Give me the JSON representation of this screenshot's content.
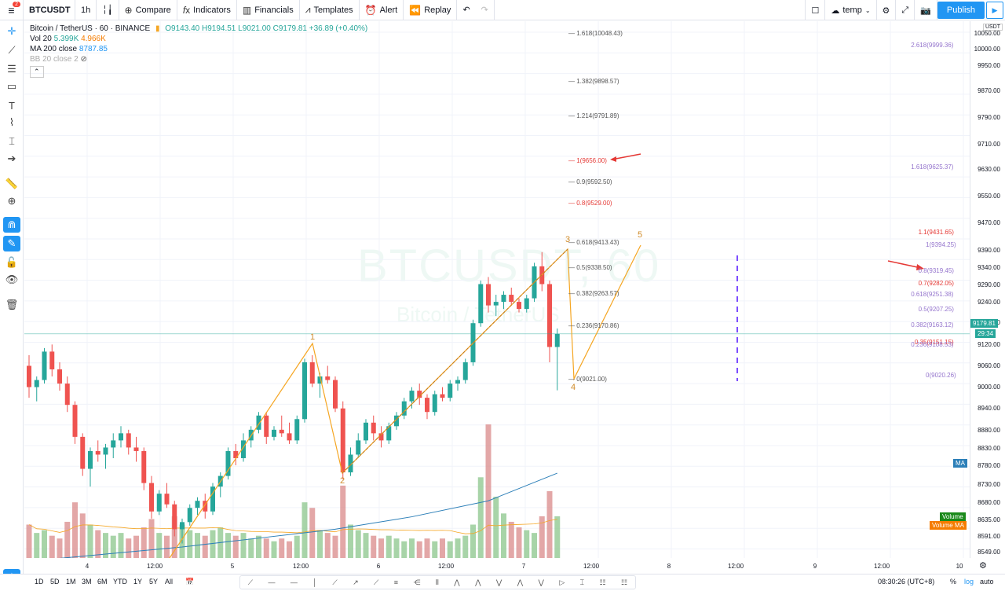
{
  "topbar": {
    "symbol": "BTCUSDT",
    "interval": "1h",
    "compare": "Compare",
    "indicators": "Indicators",
    "financials": "Financials",
    "templates": "Templates",
    "alert": "Alert",
    "replay": "Replay",
    "layout_name": "temp",
    "publish": "Publish",
    "menu_badge": "2"
  },
  "legend": {
    "title": "Bitcoin / TetherUS · 60 · BINANCE",
    "ohlc": "O9143.40 H9194.51 L9021.00 C9179.81 +36.89 (+0.40%)",
    "vol_label": "Vol 20",
    "vol_v1": "5.399K",
    "vol_v2": "4.966K",
    "ma_label": "MA 200 close",
    "ma_value": "8787.85",
    "bb_label": "BB 20 close 2"
  },
  "watermark": {
    "symbol": "BTCUSDT, 60",
    "name": "Bitcoin / TetherUS"
  },
  "price_axis": {
    "currency": "USDT",
    "labels": [
      "10050.00",
      "10000.00",
      "9950.00",
      "9870.00",
      "9790.00",
      "9710.00",
      "9630.00",
      "9550.00",
      "9470.00",
      "9390.00",
      "9340.00",
      "9290.00",
      "9240.00",
      "9180.00",
      "9120.00",
      "9060.00",
      "9000.00",
      "8940.00",
      "8880.00",
      "8830.00",
      "8780.00",
      "8730.00",
      "8680.00",
      "8635.00",
      "8591.00",
      "8549.00"
    ],
    "last_price": "9179.81",
    "countdown": "29:34",
    "ma_tag": "MA",
    "volume_tag": "Volume",
    "volume_ma_tag": "Volume MA"
  },
  "time_axis": [
    "4",
    "12:00",
    "5",
    "12:00",
    "6",
    "12:00",
    "7",
    "12:00",
    "8",
    "12:00",
    "9",
    "12:00",
    "10"
  ],
  "fib_ext": [
    {
      "label": "1.618(10048.43)",
      "color": "#555555"
    },
    {
      "label": "1.382(9898.57)",
      "color": "#555555"
    },
    {
      "label": "1.214(9791.89)",
      "color": "#555555"
    },
    {
      "label": "1(9656.00)",
      "color": "#e53935"
    },
    {
      "label": "0.9(9592.50)",
      "color": "#555555"
    },
    {
      "label": "0.8(9529.00)",
      "color": "#e53935"
    },
    {
      "label": "0.618(9413.43)",
      "color": "#555555"
    },
    {
      "label": "0.5(9338.50)",
      "color": "#555555"
    },
    {
      "label": "0.382(9263.57)",
      "color": "#555555"
    },
    {
      "label": "0.236(9170.86)",
      "color": "#555555"
    },
    {
      "label": "0(9021.00)",
      "color": "#555555"
    }
  ],
  "fib_right": [
    {
      "label": "2.618(9999.36)",
      "color": "#9575cd"
    },
    {
      "label": "1.618(9625.37)",
      "color": "#9575cd"
    },
    {
      "label": "1.1(9431.65)",
      "color": "#e53935"
    },
    {
      "label": "1(9394.25)",
      "color": "#9575cd"
    },
    {
      "label": "0.8(9319.45)",
      "color": "#9575cd"
    },
    {
      "label": "0.7(9282.05)",
      "color": "#e53935"
    },
    {
      "label": "0.618(9251.38)",
      "color": "#9575cd"
    },
    {
      "label": "0.5(9207.25)",
      "color": "#9575cd"
    },
    {
      "label": "0.382(9163.12)",
      "color": "#9575cd"
    },
    {
      "label": "0.35(9151.15)",
      "color": "#e53935"
    },
    {
      "label": "0.236(9108.53)",
      "color": "#9575cd"
    },
    {
      "label": "0(9020.26)",
      "color": "#9575cd"
    }
  ],
  "waves": [
    "1",
    "2",
    "3",
    "4",
    "5"
  ],
  "bottombar": {
    "ranges": [
      "1D",
      "5D",
      "1M",
      "3M",
      "6M",
      "YTD",
      "1Y",
      "5Y",
      "All"
    ],
    "time": "08:30:26 (UTC+8)",
    "percent": "%",
    "log": "log",
    "auto": "auto"
  },
  "colors": {
    "up": "#26a69a",
    "down": "#ef5350",
    "vol_up": "#8bc58b",
    "vol_down": "#d98a8a",
    "accent": "#2196f3",
    "wave": "#f5a623"
  },
  "chart_data": {
    "type": "candlestick",
    "candles": [
      [
        9090,
        9120,
        9000,
        9030
      ],
      [
        9030,
        9060,
        8990,
        9050
      ],
      [
        9050,
        9140,
        9040,
        9130
      ],
      [
        9130,
        9150,
        9060,
        9080
      ],
      [
        9080,
        9100,
        9020,
        9040
      ],
      [
        9040,
        9060,
        8960,
        8980
      ],
      [
        8980,
        8990,
        8870,
        8890
      ],
      [
        8890,
        8900,
        8780,
        8800
      ],
      [
        8800,
        8860,
        8750,
        8850
      ],
      [
        8850,
        8880,
        8820,
        8840
      ],
      [
        8840,
        8870,
        8800,
        8860
      ],
      [
        8860,
        8900,
        8830,
        8880
      ],
      [
        8880,
        8920,
        8860,
        8900
      ],
      [
        8900,
        8910,
        8840,
        8860
      ],
      [
        8860,
        8890,
        8820,
        8850
      ],
      [
        8850,
        8860,
        8740,
        8760
      ],
      [
        8760,
        8780,
        8660,
        8680
      ],
      [
        8680,
        8740,
        8670,
        8730
      ],
      [
        8730,
        8760,
        8690,
        8700
      ],
      [
        8700,
        8710,
        8610,
        8630
      ],
      [
        8630,
        8660,
        8590,
        8650
      ],
      [
        8650,
        8700,
        8640,
        8690
      ],
      [
        8690,
        8720,
        8670,
        8710
      ],
      [
        8710,
        8730,
        8660,
        8680
      ],
      [
        8680,
        8760,
        8670,
        8750
      ],
      [
        8750,
        8790,
        8720,
        8780
      ],
      [
        8780,
        8860,
        8770,
        8850
      ],
      [
        8850,
        8870,
        8810,
        8830
      ],
      [
        8830,
        8900,
        8820,
        8880
      ],
      [
        8880,
        8920,
        8860,
        8910
      ],
      [
        8910,
        8960,
        8900,
        8950
      ],
      [
        8950,
        8960,
        8870,
        8890
      ],
      [
        8890,
        8920,
        8880,
        8910
      ],
      [
        8910,
        8950,
        8890,
        8900
      ],
      [
        8900,
        8930,
        8870,
        8880
      ],
      [
        8880,
        8950,
        8870,
        8940
      ],
      [
        8940,
        9110,
        8930,
        9100
      ],
      [
        9100,
        9120,
        9030,
        9040
      ],
      [
        9040,
        9070,
        9000,
        9060
      ],
      [
        9060,
        9090,
        9040,
        9050
      ],
      [
        9050,
        9060,
        8960,
        8970
      ],
      [
        8970,
        8990,
        8770,
        8790
      ],
      [
        8790,
        8860,
        8780,
        8840
      ],
      [
        8840,
        8900,
        8830,
        8880
      ],
      [
        8880,
        8940,
        8870,
        8930
      ],
      [
        8930,
        8950,
        8880,
        8900
      ],
      [
        8900,
        8920,
        8860,
        8880
      ],
      [
        8880,
        8930,
        8870,
        8920
      ],
      [
        8920,
        8960,
        8910,
        8950
      ],
      [
        8950,
        9000,
        8940,
        8990
      ],
      [
        8990,
        9030,
        8970,
        9020
      ],
      [
        9020,
        9040,
        8980,
        9000
      ],
      [
        9000,
        9010,
        8940,
        8960
      ],
      [
        8960,
        9020,
        8950,
        9010
      ],
      [
        9010,
        9030,
        8990,
        9000
      ],
      [
        9000,
        9050,
        8990,
        9040
      ],
      [
        9040,
        9060,
        9020,
        9050
      ],
      [
        9050,
        9110,
        9040,
        9100
      ],
      [
        9100,
        9220,
        9090,
        9210
      ],
      [
        9210,
        9330,
        9200,
        9320
      ],
      [
        9320,
        9340,
        9240,
        9260
      ],
      [
        9260,
        9290,
        9230,
        9270
      ],
      [
        9270,
        9300,
        9250,
        9290
      ],
      [
        9290,
        9310,
        9260,
        9270
      ],
      [
        9270,
        9280,
        9240,
        9250
      ],
      [
        9250,
        9290,
        9240,
        9280
      ],
      [
        9280,
        9380,
        9270,
        9370
      ],
      [
        9370,
        9410,
        9300,
        9320
      ],
      [
        9320,
        9330,
        9100,
        9143
      ],
      [
        9143,
        9195,
        9021,
        9180
      ]
    ],
    "volumes": [
      1.2,
      0.9,
      1.0,
      0.8,
      0.7,
      1.3,
      2.0,
      1.6,
      1.2,
      1.0,
      0.9,
      0.8,
      0.9,
      0.7,
      0.8,
      1.1,
      1.4,
      0.9,
      0.8,
      1.5,
      1.2,
      1.0,
      0.9,
      0.8,
      1.0,
      1.1,
      0.9,
      0.8,
      0.9,
      0.7,
      0.8,
      0.7,
      0.6,
      0.7,
      0.6,
      0.8,
      2.0,
      1.8,
      1.0,
      0.9,
      0.8,
      2.6,
      1.2,
      1.0,
      0.9,
      0.8,
      0.7,
      0.8,
      0.7,
      0.6,
      0.7,
      0.6,
      0.7,
      0.6,
      0.7,
      0.6,
      0.7,
      0.8,
      1.2,
      2.9,
      4.8,
      2.2,
      1.6,
      1.3,
      1.1,
      1.0,
      0.9,
      1.5,
      2.4,
      1.5
    ],
    "ma200": [
      [
        0,
        8540
      ],
      [
        10,
        8560
      ],
      [
        20,
        8580
      ],
      [
        30,
        8605
      ],
      [
        40,
        8630
      ],
      [
        50,
        8665
      ],
      [
        60,
        8710
      ],
      [
        69,
        8787.85
      ]
    ],
    "yrange": [
      8549,
      10060
    ],
    "waves": [
      [
        0,
        8549
      ],
      [
        15,
        9130
      ],
      [
        19,
        8760
      ],
      [
        32,
        9390
      ],
      [
        34,
        9030
      ],
      [
        38,
        9390
      ]
    ]
  }
}
